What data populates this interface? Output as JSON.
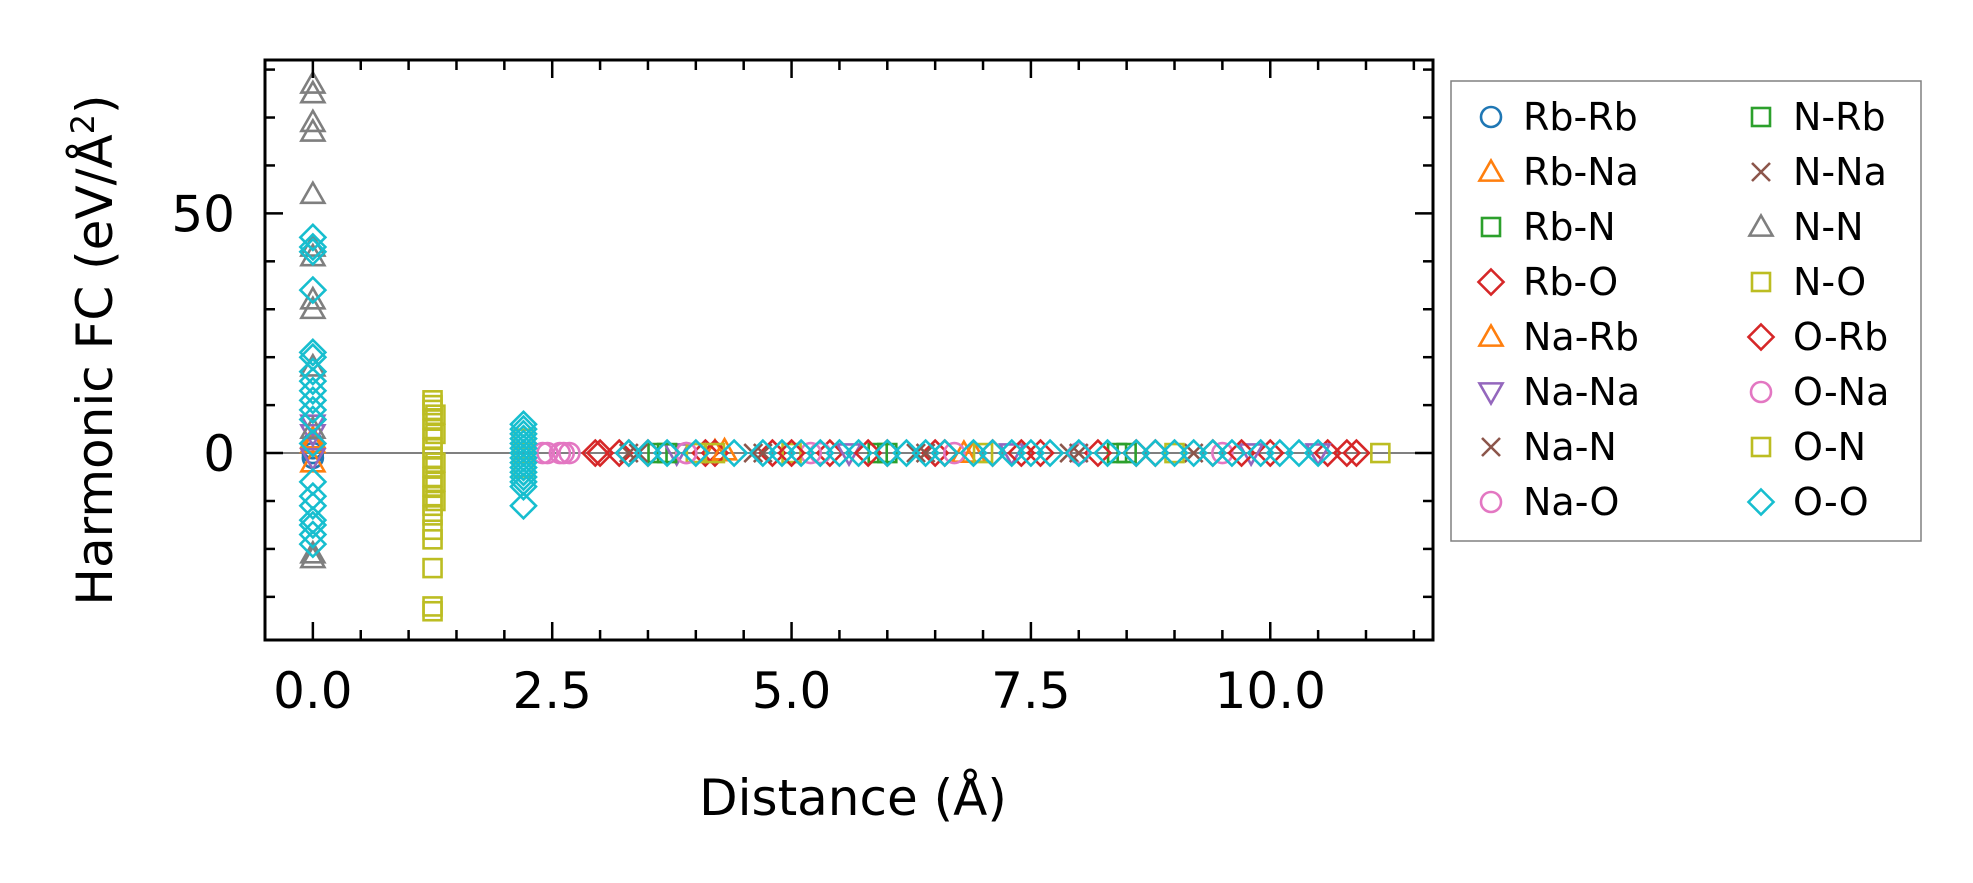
{
  "chart_data": {
    "type": "scatter",
    "title": "",
    "xlabel": "Distance (Å)",
    "ylabel_parts": [
      "Harmonic FC (eV/Å",
      "2",
      ")"
    ],
    "xlim": [
      -0.5,
      11.7
    ],
    "ylim": [
      -39,
      82
    ],
    "xticks": [
      {
        "value": 0.0,
        "label": "0.0"
      },
      {
        "value": 2.5,
        "label": "2.5"
      },
      {
        "value": 5.0,
        "label": "5.0"
      },
      {
        "value": 7.5,
        "label": "7.5"
      },
      {
        "value": 10.0,
        "label": "10.0"
      }
    ],
    "yticks": [
      {
        "value": 0,
        "label": "0"
      },
      {
        "value": 50,
        "label": "50"
      }
    ],
    "x_minor_step": 0.5,
    "y_minor_step": 10,
    "zero_line": true,
    "grid": false,
    "legend_position": "outside-right",
    "legend_columns": 2,
    "series": [
      {
        "name": "Rb-Rb",
        "marker": "circle",
        "color": "#1f77b4",
        "points": [
          [
            0,
            0
          ],
          [
            0,
            1
          ],
          [
            0,
            -1
          ],
          [
            0,
            2
          ]
        ]
      },
      {
        "name": "Rb-Na",
        "marker": "triangle-up",
        "color": "#ff7f0e",
        "points": [
          [
            0,
            3
          ],
          [
            0,
            -2
          ],
          [
            4.2,
            0.3
          ],
          [
            6.8,
            0
          ]
        ]
      },
      {
        "name": "Rb-N",
        "marker": "square",
        "color": "#2ca02c",
        "points": [
          [
            3.6,
            0
          ],
          [
            5.9,
            0
          ],
          [
            8.4,
            0
          ]
        ]
      },
      {
        "name": "Rb-O",
        "marker": "diamond",
        "color": "#d62728",
        "points": [
          [
            2.95,
            0
          ],
          [
            3.2,
            0
          ],
          [
            3.5,
            0
          ],
          [
            4.1,
            0
          ],
          [
            4.8,
            0
          ],
          [
            5.4,
            0
          ],
          [
            6.0,
            0
          ],
          [
            6.5,
            0
          ],
          [
            7.1,
            0
          ],
          [
            7.6,
            0
          ],
          [
            8.2,
            0
          ],
          [
            8.8,
            0
          ],
          [
            9.4,
            0
          ],
          [
            10.0,
            0
          ],
          [
            10.6,
            0
          ],
          [
            10.8,
            0
          ]
        ]
      },
      {
        "name": "Na-Rb",
        "marker": "triangle-up",
        "color": "#ff7f0e",
        "points": [
          [
            0,
            2
          ],
          [
            4.3,
            0.5
          ],
          [
            6.9,
            0
          ]
        ]
      },
      {
        "name": "Na-Na",
        "marker": "triangle-down",
        "color": "#9467bd",
        "points": [
          [
            0,
            4
          ],
          [
            0,
            6
          ],
          [
            0,
            -1
          ],
          [
            3.8,
            0
          ],
          [
            5.6,
            0
          ],
          [
            7.3,
            0
          ],
          [
            9.8,
            0
          ],
          [
            10.5,
            0
          ]
        ]
      },
      {
        "name": "Na-N",
        "marker": "x",
        "color": "#8c564b",
        "points": [
          [
            3.3,
            0
          ],
          [
            4.6,
            0
          ],
          [
            6.3,
            0
          ],
          [
            7.9,
            0
          ],
          [
            9.2,
            0
          ]
        ]
      },
      {
        "name": "Na-O",
        "marker": "circle",
        "color": "#e377c2",
        "points": [
          [
            2.4,
            0
          ],
          [
            2.62,
            0
          ],
          [
            3.9,
            0
          ],
          [
            5.2,
            0
          ],
          [
            6.7,
            0
          ],
          [
            8.0,
            0
          ],
          [
            9.5,
            0
          ]
        ]
      },
      {
        "name": "N-Rb",
        "marker": "square",
        "color": "#2ca02c",
        "points": [
          [
            3.7,
            0
          ],
          [
            6.0,
            0
          ],
          [
            8.5,
            0
          ]
        ]
      },
      {
        "name": "N-Na",
        "marker": "x",
        "color": "#8c564b",
        "points": [
          [
            3.4,
            0
          ],
          [
            4.7,
            0
          ],
          [
            6.4,
            0
          ],
          [
            8.0,
            0
          ]
        ]
      },
      {
        "name": "N-N",
        "marker": "triangle-up",
        "color": "#7f7f7f",
        "points": [
          [
            0,
            77
          ],
          [
            0,
            75
          ],
          [
            0,
            69
          ],
          [
            0,
            67
          ],
          [
            0,
            54
          ],
          [
            0,
            43
          ],
          [
            0,
            41
          ],
          [
            0,
            32
          ],
          [
            0,
            30
          ],
          [
            0,
            18
          ],
          [
            0,
            5
          ],
          [
            0,
            -21
          ],
          [
            0,
            -22
          ]
        ]
      },
      {
        "name": "N-O",
        "marker": "square",
        "color": "#bcbd22",
        "points": [
          [
            1.25,
            11
          ],
          [
            1.25,
            10
          ],
          [
            1.25,
            9
          ],
          [
            1.25,
            7
          ],
          [
            1.25,
            5
          ],
          [
            1.25,
            3
          ],
          [
            1.25,
            1
          ],
          [
            1.25,
            -1
          ],
          [
            1.25,
            -3
          ],
          [
            1.25,
            -5
          ],
          [
            1.25,
            -7
          ],
          [
            1.25,
            -9
          ],
          [
            1.25,
            -11
          ],
          [
            1.25,
            -13
          ],
          [
            1.25,
            -16
          ],
          [
            1.25,
            -18
          ],
          [
            1.25,
            -24
          ],
          [
            1.25,
            -32
          ],
          [
            1.25,
            -33
          ],
          [
            2.2,
            0
          ],
          [
            2.2,
            3
          ],
          [
            2.2,
            -3
          ],
          [
            4.0,
            0
          ],
          [
            5.0,
            0
          ],
          [
            7.0,
            0
          ],
          [
            9.0,
            0
          ]
        ]
      },
      {
        "name": "O-Rb",
        "marker": "diamond",
        "color": "#d62728",
        "points": [
          [
            3.0,
            0
          ],
          [
            3.3,
            0
          ],
          [
            4.2,
            0
          ],
          [
            5.0,
            0
          ],
          [
            5.8,
            0
          ],
          [
            6.6,
            0
          ],
          [
            7.4,
            0
          ],
          [
            8.6,
            0
          ],
          [
            9.7,
            0
          ],
          [
            10.9,
            0
          ]
        ]
      },
      {
        "name": "O-Na",
        "marker": "circle",
        "color": "#e377c2",
        "points": [
          [
            2.45,
            0
          ],
          [
            2.58,
            0
          ],
          [
            2.68,
            0
          ],
          [
            3.9,
            0
          ],
          [
            5.3,
            0
          ]
        ]
      },
      {
        "name": "O-N",
        "marker": "square",
        "color": "#bcbd22",
        "points": [
          [
            1.28,
            8
          ],
          [
            1.28,
            4
          ],
          [
            1.28,
            -2
          ],
          [
            1.28,
            -6
          ],
          [
            1.28,
            -10
          ],
          [
            4.2,
            0
          ],
          [
            11.15,
            0
          ]
        ]
      },
      {
        "name": "O-O",
        "marker": "diamond",
        "color": "#17becf",
        "points": [
          [
            0,
            45
          ],
          [
            0,
            43
          ],
          [
            0,
            42
          ],
          [
            0,
            34
          ],
          [
            0,
            21
          ],
          [
            0,
            20
          ],
          [
            0,
            17
          ],
          [
            0,
            15
          ],
          [
            0,
            13
          ],
          [
            0,
            11
          ],
          [
            0,
            9
          ],
          [
            0,
            7
          ],
          [
            0,
            2
          ],
          [
            0,
            -6
          ],
          [
            0,
            -9
          ],
          [
            0,
            -11
          ],
          [
            0,
            -14
          ],
          [
            0,
            -15
          ],
          [
            0,
            -17
          ],
          [
            0,
            -19
          ],
          [
            2.2,
            6
          ],
          [
            2.2,
            5
          ],
          [
            2.2,
            4
          ],
          [
            2.2,
            3
          ],
          [
            2.2,
            2
          ],
          [
            2.2,
            1
          ],
          [
            2.2,
            0
          ],
          [
            2.2,
            -1
          ],
          [
            2.2,
            -2
          ],
          [
            2.2,
            -3
          ],
          [
            2.2,
            -4
          ],
          [
            2.2,
            -5
          ],
          [
            2.2,
            -6
          ],
          [
            2.2,
            -7
          ],
          [
            2.2,
            -11
          ],
          [
            3.3,
            0
          ],
          [
            3.5,
            0
          ],
          [
            3.7,
            0
          ],
          [
            4.0,
            0
          ],
          [
            4.4,
            0
          ],
          [
            4.7,
            0
          ],
          [
            4.9,
            0
          ],
          [
            5.1,
            0
          ],
          [
            5.3,
            0
          ],
          [
            5.5,
            0
          ],
          [
            5.7,
            0
          ],
          [
            6.0,
            0
          ],
          [
            6.2,
            0
          ],
          [
            6.4,
            0
          ],
          [
            6.6,
            0
          ],
          [
            6.9,
            0
          ],
          [
            7.1,
            0
          ],
          [
            7.3,
            0
          ],
          [
            7.5,
            0
          ],
          [
            7.7,
            0
          ],
          [
            8.0,
            0
          ],
          [
            8.3,
            0
          ],
          [
            8.6,
            0
          ],
          [
            8.8,
            0
          ],
          [
            9.0,
            0
          ],
          [
            9.2,
            0
          ],
          [
            9.4,
            0
          ],
          [
            9.6,
            0
          ],
          [
            9.9,
            0
          ],
          [
            10.1,
            0
          ],
          [
            10.3,
            0
          ],
          [
            10.5,
            0
          ]
        ]
      }
    ]
  }
}
